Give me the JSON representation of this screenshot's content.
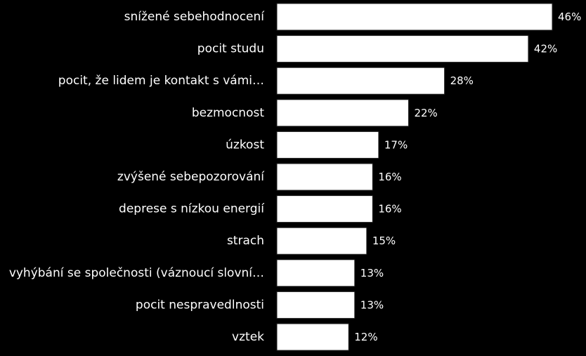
{
  "chart_data": {
    "type": "bar",
    "orientation": "horizontal",
    "title": "",
    "xlabel": "",
    "ylabel": "",
    "grid": false,
    "legend": "none",
    "xlim": [
      0,
      46
    ],
    "categories": [
      "snížené sebehodnocení",
      "pocit studu",
      "pocit, že lidem je kontakt s vámi…",
      "bezmocnost",
      "úzkost",
      "zvýšené sebepozorování",
      "deprese s nízkou energií",
      "strach",
      "vyhýbání se společnosti (váznoucí slovní…",
      "pocit nespravedlnosti",
      "vztek"
    ],
    "values": [
      46,
      42,
      28,
      22,
      17,
      16,
      16,
      15,
      13,
      13,
      12
    ],
    "value_labels": [
      "46%",
      "42%",
      "28%",
      "22%",
      "17%",
      "16%",
      "16%",
      "15%",
      "13%",
      "13%",
      "12%"
    ],
    "colors": {
      "background": "#000000",
      "bar_fill": "#ffffff",
      "bar_stroke": "#1f1f1f",
      "text": "#ffffff"
    }
  }
}
